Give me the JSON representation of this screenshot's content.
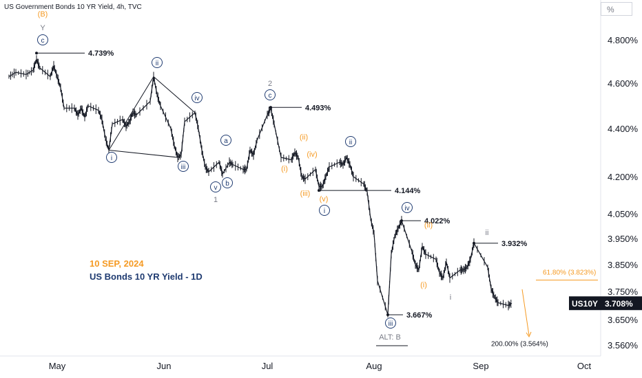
{
  "title": "US Government Bonds 10 YR Yield, 4h, TVC",
  "unit_label": "%",
  "annotation_date": "10 SEP, 2024",
  "annotation_subtitle": "US Bonds 10 YR Yield - 1D",
  "colors": {
    "price": "#131722",
    "orange": "#f59a23",
    "navy": "#1e3a70",
    "gray": "#787b86",
    "axis_text": "#131722"
  },
  "chart_data": {
    "type": "line",
    "x_ticks": [
      "May",
      "Jun",
      "Jul",
      "Aug",
      "Sep",
      "Oct"
    ],
    "y_ticks": [
      "4.800%",
      "4.600%",
      "4.400%",
      "4.200%",
      "4.050%",
      "3.950%",
      "3.850%",
      "3.750%",
      "3.650%",
      "3.560%"
    ],
    "y_tick_values": [
      4.8,
      4.6,
      4.4,
      4.2,
      4.05,
      3.95,
      3.85,
      3.75,
      3.65,
      3.56
    ],
    "symbol": "US10Y",
    "last_value": "3.708%",
    "series": [
      {
        "points": [
          [
            "2024-04-17",
            4.63
          ],
          [
            "2024-04-19",
            4.65
          ],
          [
            "2024-04-22",
            4.64
          ],
          [
            "2024-04-24",
            4.66
          ],
          [
            "2024-04-25",
            4.71
          ],
          [
            "2024-04-26",
            4.67
          ],
          [
            "2024-04-29",
            4.63
          ],
          [
            "2024-04-30",
            4.68
          ],
          [
            "2024-05-01",
            4.63
          ],
          [
            "2024-05-02",
            4.58
          ],
          [
            "2024-05-03",
            4.49
          ],
          [
            "2024-05-06",
            4.49
          ],
          [
            "2024-05-07",
            4.46
          ],
          [
            "2024-05-08",
            4.49
          ],
          [
            "2024-05-09",
            4.45
          ],
          [
            "2024-05-10",
            4.5
          ],
          [
            "2024-05-13",
            4.48
          ],
          [
            "2024-05-14",
            4.44
          ],
          [
            "2024-05-15",
            4.36
          ],
          [
            "2024-05-16",
            4.31
          ],
          [
            "2024-05-17",
            4.42
          ],
          [
            "2024-05-20",
            4.44
          ],
          [
            "2024-05-21",
            4.41
          ],
          [
            "2024-05-22",
            4.43
          ],
          [
            "2024-05-23",
            4.47
          ],
          [
            "2024-05-24",
            4.46
          ],
          [
            "2024-05-28",
            4.52
          ],
          [
            "2024-05-29",
            4.63
          ],
          [
            "2024-05-30",
            4.55
          ],
          [
            "2024-05-31",
            4.5
          ],
          [
            "2024-06-03",
            4.4
          ],
          [
            "2024-06-04",
            4.33
          ],
          [
            "2024-06-05",
            4.28
          ],
          [
            "2024-06-06",
            4.29
          ],
          [
            "2024-06-07",
            4.43
          ],
          [
            "2024-06-10",
            4.47
          ],
          [
            "2024-06-11",
            4.4
          ],
          [
            "2024-06-12",
            4.31
          ],
          [
            "2024-06-13",
            4.24
          ],
          [
            "2024-06-14",
            4.22
          ],
          [
            "2024-06-17",
            4.26
          ],
          [
            "2024-06-18",
            4.21
          ],
          [
            "2024-06-20",
            4.26
          ],
          [
            "2024-06-21",
            4.25
          ],
          [
            "2024-06-24",
            4.23
          ],
          [
            "2024-06-25",
            4.23
          ],
          [
            "2024-06-26",
            4.31
          ],
          [
            "2024-06-27",
            4.29
          ],
          [
            "2024-06-28",
            4.35
          ],
          [
            "2024-07-01",
            4.46
          ],
          [
            "2024-07-02",
            4.49
          ],
          [
            "2024-07-03",
            4.42
          ],
          [
            "2024-07-05",
            4.28
          ],
          [
            "2024-07-08",
            4.27
          ],
          [
            "2024-07-09",
            4.3
          ],
          [
            "2024-07-10",
            4.28
          ],
          [
            "2024-07-11",
            4.2
          ],
          [
            "2024-07-12",
            4.19
          ],
          [
            "2024-07-15",
            4.23
          ],
          [
            "2024-07-16",
            4.16
          ],
          [
            "2024-07-17",
            4.16
          ],
          [
            "2024-07-18",
            4.2
          ],
          [
            "2024-07-19",
            4.24
          ],
          [
            "2024-07-22",
            4.26
          ],
          [
            "2024-07-23",
            4.25
          ],
          [
            "2024-07-24",
            4.28
          ],
          [
            "2024-07-25",
            4.25
          ],
          [
            "2024-07-26",
            4.2
          ],
          [
            "2024-07-29",
            4.17
          ],
          [
            "2024-07-30",
            4.14
          ],
          [
            "2024-07-31",
            4.03
          ],
          [
            "2024-08-01",
            3.97
          ],
          [
            "2024-08-02",
            3.79
          ],
          [
            "2024-08-05",
            3.667
          ],
          [
            "2024-08-06",
            3.89
          ],
          [
            "2024-08-07",
            3.96
          ],
          [
            "2024-08-08",
            3.99
          ],
          [
            "2024-08-09",
            4.022
          ],
          [
            "2024-08-12",
            3.9
          ],
          [
            "2024-08-13",
            3.85
          ],
          [
            "2024-08-14",
            3.83
          ],
          [
            "2024-08-15",
            3.92
          ],
          [
            "2024-08-16",
            3.89
          ],
          [
            "2024-08-19",
            3.87
          ],
          [
            "2024-08-20",
            3.82
          ],
          [
            "2024-08-21",
            3.8
          ],
          [
            "2024-08-22",
            3.86
          ],
          [
            "2024-08-23",
            3.8
          ],
          [
            "2024-08-26",
            3.83
          ],
          [
            "2024-08-27",
            3.83
          ],
          [
            "2024-08-28",
            3.84
          ],
          [
            "2024-08-29",
            3.87
          ],
          [
            "2024-08-30",
            3.932
          ],
          [
            "2024-09-03",
            3.84
          ],
          [
            "2024-09-04",
            3.76
          ],
          [
            "2024-09-05",
            3.73
          ],
          [
            "2024-09-06",
            3.71
          ],
          [
            "2024-09-09",
            3.7
          ],
          [
            "2024-09-10",
            3.708
          ]
        ]
      }
    ],
    "levels": [
      {
        "label": "4.739%",
        "date": "2024-04-25",
        "value": 4.739
      },
      {
        "label": "4.493%",
        "date": "2024-07-02",
        "value": 4.493
      },
      {
        "label": "4.144%",
        "date": "2024-07-16",
        "value": 4.144
      },
      {
        "label": "4.022%",
        "date": "2024-08-09",
        "value": 4.022
      },
      {
        "label": "3.932%",
        "date": "2024-08-30",
        "value": 3.932
      },
      {
        "label": "3.667%",
        "date": "2024-08-05",
        "value": 3.667
      }
    ],
    "fib_levels": [
      {
        "label": "61.80% (3.823%)",
        "value": 3.823
      },
      {
        "label": "200.00% (3.564%)",
        "value": 3.564
      }
    ],
    "wave_labels": [
      {
        "text": "(B)",
        "color": "orange"
      },
      {
        "text": "Y",
        "color": "gray"
      },
      {
        "text": "c",
        "color": "navy",
        "circled": true
      },
      {
        "text": "ii",
        "color": "navy",
        "circled": true
      },
      {
        "text": "iv",
        "color": "navy",
        "circled": true
      },
      {
        "text": "i",
        "color": "navy",
        "circled": true
      },
      {
        "text": "iii",
        "color": "navy",
        "circled": true
      },
      {
        "text": "a",
        "color": "navy",
        "circled": true
      },
      {
        "text": "v",
        "color": "navy",
        "circled": true
      },
      {
        "text": "b",
        "color": "navy",
        "circled": true
      },
      {
        "text": "1",
        "color": "gray"
      },
      {
        "text": "2",
        "color": "gray"
      },
      {
        "text": "c",
        "color": "navy",
        "circled": true
      },
      {
        "text": "(ii)",
        "color": "orange"
      },
      {
        "text": "(iv)",
        "color": "orange"
      },
      {
        "text": "(i)",
        "color": "orange"
      },
      {
        "text": "(iii)",
        "color": "orange"
      },
      {
        "text": "(v)",
        "color": "orange"
      },
      {
        "text": "i",
        "color": "navy",
        "circled": true
      },
      {
        "text": "ii",
        "color": "navy",
        "circled": true
      },
      {
        "text": "iv",
        "color": "navy",
        "circled": true
      },
      {
        "text": "(ii)",
        "color": "orange"
      },
      {
        "text": "(i)",
        "color": "orange"
      },
      {
        "text": "iii",
        "color": "navy",
        "circled": true
      },
      {
        "text": "ALT: B",
        "color": "gray"
      },
      {
        "text": "ii",
        "color": "gray"
      },
      {
        "text": "i",
        "color": "gray"
      }
    ]
  }
}
